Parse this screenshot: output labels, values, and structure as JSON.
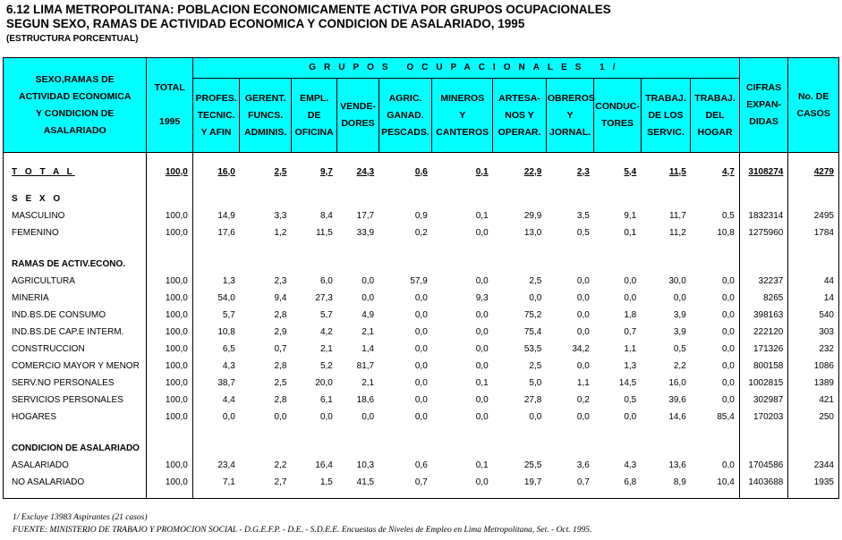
{
  "title": {
    "line1": "6.12  LIMA METROPOLITANA: POBLACION ECONOMICAMENTE ACTIVA POR GRUPOS OCUPACIONALES",
    "line2": "SEGUN SEXO, RAMAS DE ACTIVIDAD ECONOMICA Y CONDICION DE ASALARIADO, 1995",
    "line3": "(ESTRUCTURA PORCENTUAL)"
  },
  "header": {
    "col_label": [
      "SEXO,RAMAS DE",
      "ACTIVIDAD ECONOMICA",
      "Y CONDICION DE",
      "ASALARIADO"
    ],
    "total": [
      "TOTAL",
      "",
      "1995"
    ],
    "groups": "GRUPOS  OCUPACIONALES  1/",
    "occupations": [
      [
        "PROFES.",
        "TECNIC.",
        "Y AFIN"
      ],
      [
        "GERENT.",
        "FUNCS.",
        "ADMINIS."
      ],
      [
        "EMPL.",
        "DE",
        "OFICINA"
      ],
      [
        "VENDE-",
        "DORES",
        ""
      ],
      [
        "AGRIC.",
        "GANAD.",
        "PESCADS."
      ],
      [
        "MINEROS",
        "Y",
        "CANTEROS"
      ],
      [
        "ARTESA-",
        "NOS  Y",
        "OPERAR."
      ],
      [
        "OBREROS",
        "Y",
        "JORNAL."
      ],
      [
        "CONDUC-",
        "TORES",
        ""
      ],
      [
        "TRABAJ.",
        "DE LOS",
        "SERVIC."
      ],
      [
        "TRABAJ.",
        "DEL",
        "HOGAR"
      ]
    ],
    "expanded": [
      "CIFRAS",
      "EXPAN-",
      "DIDAS"
    ],
    "cases": [
      "No. DE",
      "CASOS"
    ]
  },
  "total_row": [
    "T O T A L",
    "100,0",
    "16,0",
    "2,5",
    "9,7",
    "24,3",
    "0,6",
    "0,1",
    "22,9",
    "2,3",
    "5,4",
    "11,5",
    "4,7",
    "3108274",
    "4279"
  ],
  "sections": {
    "sexo": {
      "title": "S E X O",
      "rows": [
        [
          "MASCULINO",
          "100,0",
          "14,9",
          "3,3",
          "8,4",
          "17,7",
          "0,9",
          "0,1",
          "29,9",
          "3,5",
          "9,1",
          "11,7",
          "0,5",
          "1832314",
          "2495"
        ],
        [
          "FEMENINO",
          "100,0",
          "17,6",
          "1,2",
          "11,5",
          "33,9",
          "0,2",
          "0,0",
          "13,0",
          "0,5",
          "0,1",
          "11,2",
          "10,8",
          "1275960",
          "1784"
        ]
      ]
    },
    "ramas": {
      "title": "RAMAS DE ACTIV.ECONO.",
      "rows": [
        [
          "AGRICULTURA",
          "100,0",
          "1,3",
          "2,3",
          "6,0",
          "0,0",
          "57,9",
          "0,0",
          "2,5",
          "0,0",
          "0,0",
          "30,0",
          "0,0",
          "32237",
          "44"
        ],
        [
          "MINERIA",
          "100,0",
          "54,0",
          "9,4",
          "27,3",
          "0,0",
          "0,0",
          "9,3",
          "0,0",
          "0,0",
          "0,0",
          "0,0",
          "0,0",
          "8265",
          "14"
        ],
        [
          "IND.BS.DE CONSUMO",
          "100,0",
          "5,7",
          "2,8",
          "5,7",
          "4,9",
          "0,0",
          "0,0",
          "75,2",
          "0,0",
          "1,8",
          "3,9",
          "0,0",
          "398163",
          "540"
        ],
        [
          "IND.BS.DE CAP.E INTERM.",
          "100,0",
          "10,8",
          "2,9",
          "4,2",
          "2,1",
          "0,0",
          "0,0",
          "75,4",
          "0,0",
          "0,7",
          "3,9",
          "0,0",
          "222120",
          "303"
        ],
        [
          "CONSTRUCCION",
          "100,0",
          "6,5",
          "0,7",
          "2,1",
          "1,4",
          "0,0",
          "0,0",
          "53,5",
          "34,2",
          "1,1",
          "0,5",
          "0,0",
          "171326",
          "232"
        ],
        [
          "COMERCIO MAYOR Y MENOR",
          "100,0",
          "4,3",
          "2,8",
          "5,2",
          "81,7",
          "0,0",
          "0,0",
          "2,5",
          "0,0",
          "1,3",
          "2,2",
          "0,0",
          "800158",
          "1086"
        ],
        [
          "SERV.NO PERSONALES",
          "100,0",
          "38,7",
          "2,5",
          "20,0",
          "2,1",
          "0,0",
          "0,1",
          "5,0",
          "1,1",
          "14,5",
          "16,0",
          "0,0",
          "1002815",
          "1389"
        ],
        [
          "SERVICIOS PERSONALES",
          "100,0",
          "4,4",
          "2,8",
          "6,1",
          "18,6",
          "0,0",
          "0,0",
          "27,8",
          "0,2",
          "0,5",
          "39,6",
          "0,0",
          "302987",
          "421"
        ],
        [
          "HOGARES",
          "100,0",
          "0,0",
          "0,0",
          "0,0",
          "0,0",
          "0,0",
          "0,0",
          "0,0",
          "0,0",
          "0,0",
          "14,6",
          "85,4",
          "170203",
          "250"
        ]
      ]
    },
    "condicion": {
      "title": "CONDICION DE ASALARIADO",
      "rows": [
        [
          "ASALARIADO",
          "100,0",
          "23,4",
          "2,2",
          "16,4",
          "10,3",
          "0,6",
          "0,1",
          "25,5",
          "3,6",
          "4,3",
          "13,6",
          "0,0",
          "1704586",
          "2344"
        ],
        [
          "NO ASALARIADO",
          "100,0",
          "7,1",
          "2,7",
          "1,5",
          "41,5",
          "0,7",
          "0,0",
          "19,7",
          "0,7",
          "6,8",
          "8,9",
          "10,4",
          "1403688",
          "1935"
        ]
      ]
    }
  },
  "footnotes": {
    "note1": "1/ Excluye 13983 Aspirantes (21 casos)",
    "source": "FUENTE: MINISTERIO DE TRABAJO Y PROMOCION SOCIAL - D.G.E.F.P. - D.E. - S.D.E.E.    Encuestas de Niveles de Empleo en Lima Metropolitana, Set. - Oct. 1995."
  }
}
